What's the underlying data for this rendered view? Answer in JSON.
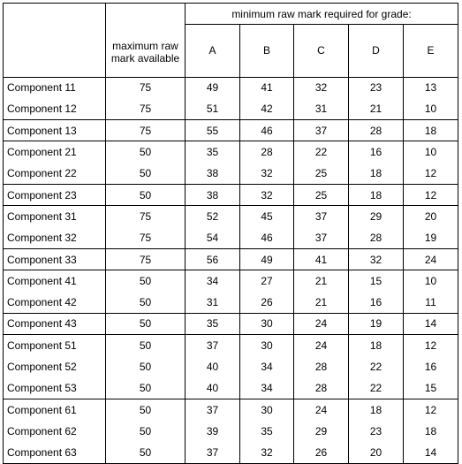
{
  "header": {
    "grade_caption": "minimum raw mark required for grade:",
    "max_caption": "maximum raw mark available",
    "grades": [
      "A",
      "B",
      "C",
      "D",
      "E"
    ]
  },
  "groups": [
    [
      {
        "component": "Component 11",
        "max": "75",
        "A": "49",
        "B": "41",
        "C": "32",
        "D": "23",
        "E": "13"
      },
      {
        "component": "Component 12",
        "max": "75",
        "A": "51",
        "B": "42",
        "C": "31",
        "D": "21",
        "E": "10"
      }
    ],
    [
      {
        "component": "Component 13",
        "max": "75",
        "A": "55",
        "B": "46",
        "C": "37",
        "D": "28",
        "E": "18"
      }
    ],
    [
      {
        "component": "Component 21",
        "max": "50",
        "A": "35",
        "B": "28",
        "C": "22",
        "D": "16",
        "E": "10"
      },
      {
        "component": "Component 22",
        "max": "50",
        "A": "38",
        "B": "32",
        "C": "25",
        "D": "18",
        "E": "12"
      }
    ],
    [
      {
        "component": "Component 23",
        "max": "50",
        "A": "38",
        "B": "32",
        "C": "25",
        "D": "18",
        "E": "12"
      }
    ],
    [
      {
        "component": "Component 31",
        "max": "75",
        "A": "52",
        "B": "45",
        "C": "37",
        "D": "29",
        "E": "20"
      },
      {
        "component": "Component 32",
        "max": "75",
        "A": "54",
        "B": "46",
        "C": "37",
        "D": "28",
        "E": "19"
      }
    ],
    [
      {
        "component": "Component 33",
        "max": "75",
        "A": "56",
        "B": "49",
        "C": "41",
        "D": "32",
        "E": "24"
      }
    ],
    [
      {
        "component": "Component 41",
        "max": "50",
        "A": "34",
        "B": "27",
        "C": "21",
        "D": "15",
        "E": "10"
      },
      {
        "component": "Component 42",
        "max": "50",
        "A": "31",
        "B": "26",
        "C": "21",
        "D": "16",
        "E": "11"
      }
    ],
    [
      {
        "component": "Component 43",
        "max": "50",
        "A": "35",
        "B": "30",
        "C": "24",
        "D": "19",
        "E": "14"
      }
    ],
    [
      {
        "component": "Component 51",
        "max": "50",
        "A": "37",
        "B": "30",
        "C": "24",
        "D": "18",
        "E": "12"
      },
      {
        "component": "Component 52",
        "max": "50",
        "A": "40",
        "B": "34",
        "C": "28",
        "D": "22",
        "E": "16"
      },
      {
        "component": "Component 53",
        "max": "50",
        "A": "40",
        "B": "34",
        "C": "28",
        "D": "22",
        "E": "15"
      }
    ],
    [
      {
        "component": "Component 61",
        "max": "50",
        "A": "37",
        "B": "30",
        "C": "24",
        "D": "18",
        "E": "12"
      },
      {
        "component": "Component 62",
        "max": "50",
        "A": "39",
        "B": "35",
        "C": "29",
        "D": "23",
        "E": "18"
      },
      {
        "component": "Component 63",
        "max": "50",
        "A": "37",
        "B": "32",
        "C": "26",
        "D": "20",
        "E": "14"
      }
    ]
  ]
}
